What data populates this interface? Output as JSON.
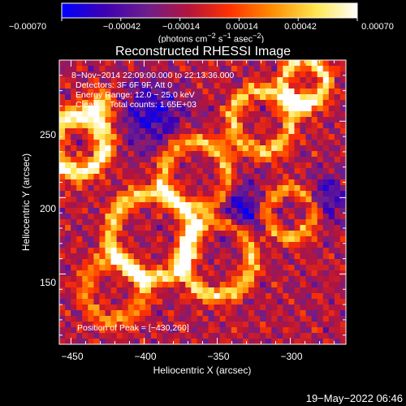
{
  "chart_data": {
    "type": "heatmap",
    "title": "Reconstructed RHESSI Image",
    "xlabel": "Heliocentric X (arcsec)",
    "ylabel": "Heliocentric Y (arcsec)",
    "xlim": [
      -458,
      -262
    ],
    "ylim": [
      104,
      290
    ],
    "x_ticks": [
      -450,
      -400,
      -350,
      -300
    ],
    "x_tick_labels": [
      "−450",
      "−400",
      "−350",
      "−300"
    ],
    "y_ticks": [
      150,
      200,
      250
    ],
    "y_tick_labels": [
      "150",
      "200",
      "250"
    ],
    "colorbar": {
      "range": [
        -0.0007,
        0.0007
      ],
      "ticks": [
        -0.0007,
        -0.00042,
        -0.00014,
        0.00014,
        0.00042,
        0.0007
      ],
      "tick_labels": [
        "−0.00070",
        "−0.00042",
        "−0.00014",
        "0.00014",
        "0.00042",
        "0.00070"
      ],
      "units_label": "(photons cm<sup>−2</sup> s<sup>−1</sup> asec<sup>−2</sup>)",
      "colors": [
        "#0000ff",
        "#3c00b4",
        "#6e1e8c",
        "#b4143c",
        "#ff3200",
        "#ff8c00",
        "#ffe650",
        "#ffffff"
      ]
    },
    "annotations": [
      "8−Nov−2014 22:09:00.000 to 22:13:36.000",
      "Detectors: 3F 6F 9F, Att 0",
      "Energy Range: 12.0 − 25.0 keV",
      "Clean     Total counts: 1.65E+03"
    ],
    "peak_label": "Position of Peak = [−430,260]",
    "peak": [
      -430,
      260
    ]
  },
  "footer": {
    "timestamp": "19−May−2022 06:46"
  }
}
